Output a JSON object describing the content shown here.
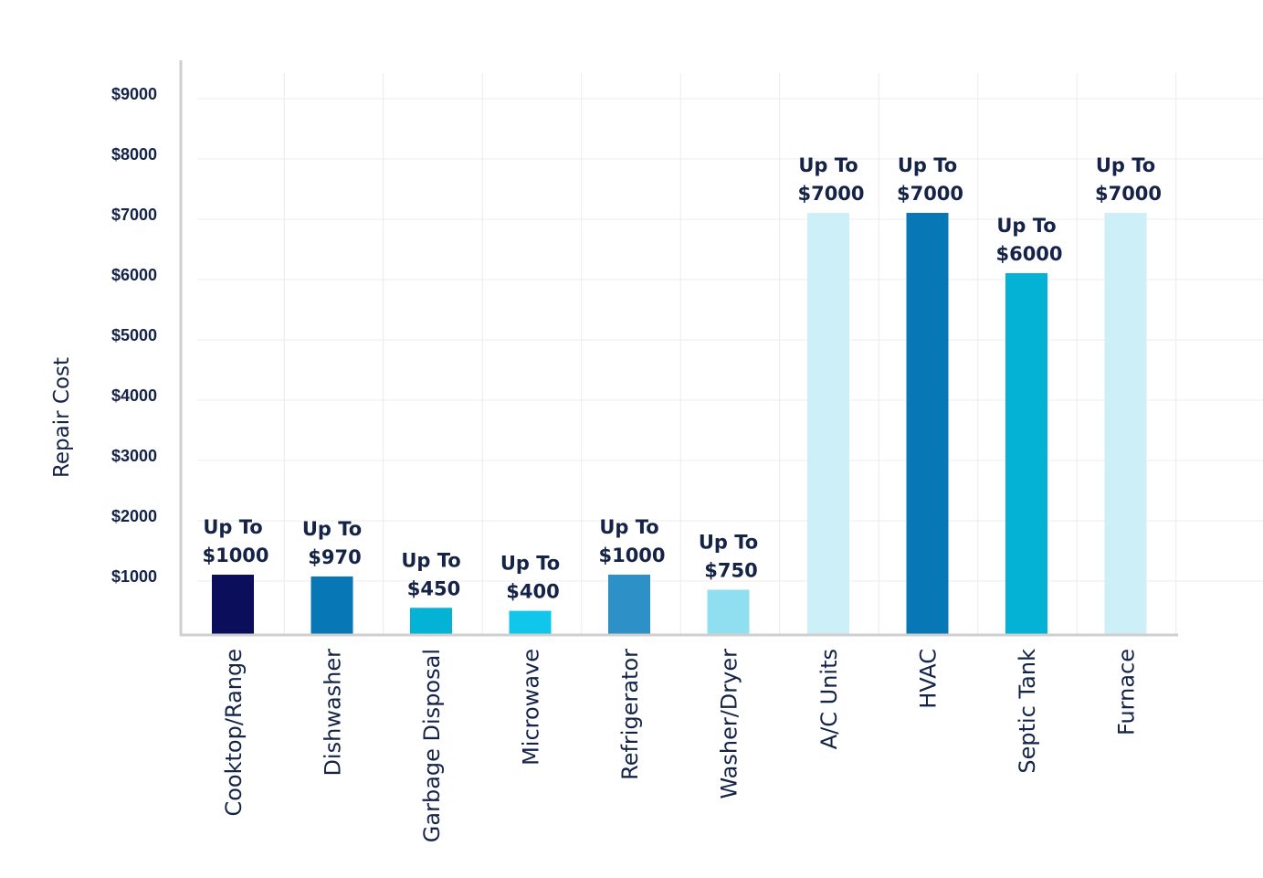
{
  "chart_data": {
    "type": "bar",
    "title": "",
    "xlabel": "",
    "ylabel": "Repair Cost",
    "ylim": [
      0,
      9000
    ],
    "y_ticks": [
      {
        "value": 1000,
        "label": "$1000"
      },
      {
        "value": 2000,
        "label": "$2000"
      },
      {
        "value": 3000,
        "label": "$3000"
      },
      {
        "value": 4000,
        "label": "$4000"
      },
      {
        "value": 5000,
        "label": "$5000"
      },
      {
        "value": 6000,
        "label": "$6000"
      },
      {
        "value": 7000,
        "label": "$7000"
      },
      {
        "value": 8000,
        "label": "$8000"
      },
      {
        "value": 9000,
        "label": "$9000"
      }
    ],
    "grid": true,
    "legend": "none",
    "bars": [
      {
        "category": "Cooktop/Range",
        "value": 1000,
        "label_line1": "Up To",
        "label_line2": "$1000",
        "color": "#0b0e5a"
      },
      {
        "category": "Dishwasher",
        "value": 970,
        "label_line1": "Up To",
        "label_line2": "$970",
        "color": "#0777b5"
      },
      {
        "category": "Garbage Disposal",
        "value": 450,
        "label_line1": "Up To",
        "label_line2": "$450",
        "color": "#03b2d4"
      },
      {
        "category": "Microwave",
        "value": 400,
        "label_line1": "Up To",
        "label_line2": "$400",
        "color": "#10c6ea"
      },
      {
        "category": "Refrigerator",
        "value": 1000,
        "label_line1": "Up To",
        "label_line2": "$1000",
        "color": "#2d91c8"
      },
      {
        "category": "Washer/Dryer",
        "value": 750,
        "label_line1": "Up To",
        "label_line2": "$750",
        "color": "#8fdff0"
      },
      {
        "category": "A/C Units",
        "value": 7000,
        "label_line1": "Up To",
        "label_line2": "$7000",
        "color": "#cdeff7"
      },
      {
        "category": "HVAC",
        "value": 7000,
        "label_line1": "Up To",
        "label_line2": "$7000",
        "color": "#0777b5"
      },
      {
        "category": "Septic Tank",
        "value": 6000,
        "label_line1": "Up To",
        "label_line2": "$6000",
        "color": "#03b2d4"
      },
      {
        "category": "Furnace",
        "value": 7000,
        "label_line1": "Up To",
        "label_line2": "$7000",
        "color": "#cdeff7"
      }
    ]
  }
}
